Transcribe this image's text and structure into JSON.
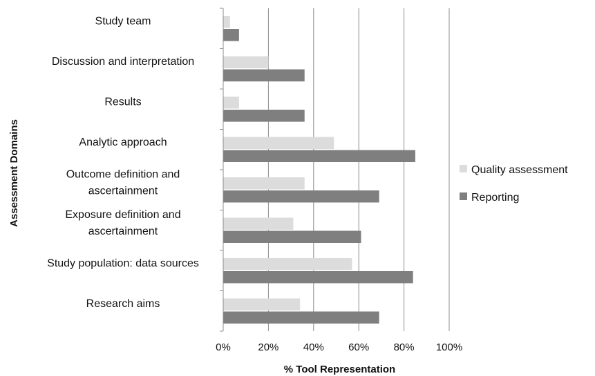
{
  "chart_data": {
    "type": "bar",
    "orientation": "horizontal",
    "categories": [
      "Study team",
      "Discussion and interpretation",
      "Results",
      "Analytic approach",
      "Outcome definition and ascertainment",
      "Exposure definition and ascertainment",
      "Study population: data sources",
      "Research aims"
    ],
    "series": [
      {
        "name": "Quality assessment",
        "color": "#dcdcdc",
        "values": [
          3,
          20,
          7,
          49,
          36,
          31,
          57,
          34
        ]
      },
      {
        "name": "Reporting",
        "color": "#7f7f7f",
        "values": [
          7,
          36,
          36,
          85,
          69,
          61,
          84,
          69
        ]
      }
    ],
    "xlabel": "% Tool Representation",
    "ylabel": "Assessment Domains",
    "xlim": [
      0,
      100
    ],
    "xticks": [
      0,
      20,
      40,
      60,
      80,
      100
    ],
    "xtick_labels": [
      "0%",
      "20%",
      "40%",
      "60%",
      "80%",
      "100%"
    ],
    "grid": true,
    "legend": "right"
  }
}
